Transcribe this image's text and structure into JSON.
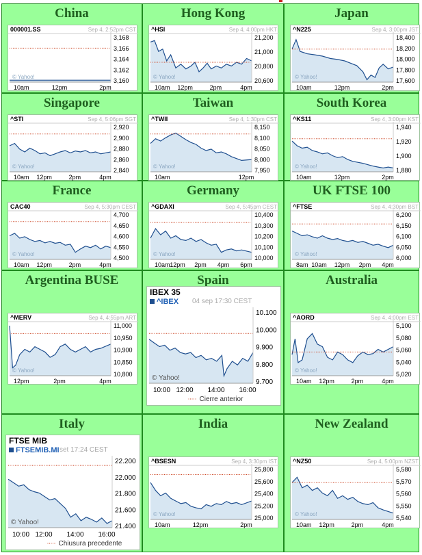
{
  "markets": [
    {
      "title": "China",
      "symbol": "000001.SS",
      "date": "Sep 4, 2:52pm CST",
      "y_labels": [
        "3,168",
        "3,166",
        "3,164",
        "3,162",
        "3,160"
      ],
      "x_labels": [
        "10am",
        "12pm",
        "2pm"
      ],
      "watermark": "© Yahoo!"
    },
    {
      "title": "Hong Kong",
      "symbol": "^HSI",
      "date": "Sep 4, 4:00pm HKT",
      "y_labels": [
        "21,200",
        "21,000",
        "20,800",
        "20,600"
      ],
      "x_labels": [
        "10am",
        "12pm",
        "2pm",
        "4pm"
      ],
      "watermark": "© Yahoo!"
    },
    {
      "title": "Japan",
      "symbol": "^N225",
      "date": "Sep 4, 3:00pm JST",
      "y_labels": [
        "18,400",
        "18,200",
        "18,000",
        "17,800",
        "17,600"
      ],
      "x_labels": [
        "10am",
        "12pm",
        "2pm"
      ],
      "watermark": "© Yahoo!"
    },
    {
      "title": "Singapore",
      "symbol": "^STI",
      "date": "Sep 4, 5:06pm SGT",
      "y_labels": [
        "2,920",
        "2,900",
        "2,880",
        "2,860",
        "2,840"
      ],
      "x_labels": [
        "10am",
        "12pm",
        "2pm",
        "4pm"
      ],
      "watermark": "© Yahoo!"
    },
    {
      "title": "Taiwan",
      "symbol": "^TWII",
      "date": "Sep 4, 1:30pm CST",
      "y_labels": [
        "8,150",
        "8,100",
        "8,050",
        "8,000",
        "7,950"
      ],
      "x_labels": [
        "10am",
        "12pm"
      ],
      "watermark": "© Yahoo!"
    },
    {
      "title": "South Korea",
      "symbol": "^KS11",
      "date": "Sep 4, 3:00pm KST",
      "y_labels": [
        "1,940",
        "1,920",
        "1,900",
        "1,880"
      ],
      "x_labels": [
        "10am",
        "12pm",
        "2pm"
      ],
      "watermark": "© Yahoo!"
    },
    {
      "title": "France",
      "symbol": "CAC40",
      "date": "Sep 4, 5:30pm CEST",
      "y_labels": [
        "4,700",
        "4,650",
        "4,600",
        "4,550",
        "4,500"
      ],
      "x_labels": [
        "10am",
        "12pm",
        "2pm",
        "4pm"
      ],
      "watermark": "© Yahoo!"
    },
    {
      "title": "Germany",
      "symbol": "^GDAXI",
      "date": "Sep 4, 5:45pm CEST",
      "y_labels": [
        "10,400",
        "10,300",
        "10,200",
        "10,100",
        "10,000"
      ],
      "x_labels": [
        "10am",
        "12pm",
        "2pm",
        "4pm",
        "6pm"
      ],
      "watermark": "© Yahoo!"
    },
    {
      "title": "UK FTSE 100",
      "symbol": "^FTSE",
      "date": "Sep 4, 4:30pm BST",
      "y_labels": [
        "6,200",
        "6,150",
        "6,100",
        "6,050",
        "6,000"
      ],
      "x_labels": [
        "8am",
        "10am",
        "12pm",
        "2pm",
        "4pm"
      ],
      "watermark": "© Yahoo!"
    },
    {
      "title": "Argentina BUSE",
      "symbol": "^MERV",
      "date": "Sep 4, 4:55pm ART",
      "y_labels": [
        "11,000",
        "10,950",
        "10,900",
        "10,850",
        "10,800"
      ],
      "x_labels": [
        "12pm",
        "2pm",
        "4pm"
      ],
      "watermark": "© Yahoo!"
    },
    {
      "title": "Spain",
      "index_name": "IBEX 35",
      "symbol": "^IBEX",
      "date": "04 sep 17:30 CEST",
      "y_labels": [
        "10.100",
        "10.000",
        "9.900",
        "9.800",
        "9.700"
      ],
      "x_labels": [
        "10:00",
        "12:00",
        "14:00",
        "16:00"
      ],
      "watermark": "© Yahoo!",
      "legend": "Cierre anterior"
    },
    {
      "title": "Australia",
      "symbol": "^AORD",
      "date": "Sep 4, 4:00pm EST",
      "y_labels": [
        "5,100",
        "5,080",
        "5,060",
        "5,040",
        "5,020"
      ],
      "x_labels": [
        "10am",
        "12pm",
        "2pm",
        "4pm"
      ],
      "watermark": "© Yahoo!"
    },
    {
      "title": "Italy",
      "index_name": "FTSE MIB",
      "symbol": "FTSEMIB.MI",
      "date": "set 17:24 CEST",
      "y_labels": [
        "22.200",
        "22.000",
        "21.800",
        "21.600",
        "21.400"
      ],
      "x_labels": [
        "10:00",
        "12:00",
        "14:00",
        "16:00"
      ],
      "watermark": "© Yahoo!",
      "legend": "Chiusura precedente"
    },
    {
      "title": "India",
      "symbol": "^BSESN",
      "date": "Sep 4, 3:30pm IST",
      "y_labels": [
        "25,800",
        "25,600",
        "25,400",
        "25,200",
        "25,000"
      ],
      "x_labels": [
        "10am",
        "12pm",
        "2pm"
      ],
      "watermark": "© Yahoo!"
    },
    {
      "title": "New Zealand",
      "symbol": "^NZ50",
      "date": "Sep 4, 5:00pm NZST",
      "y_labels": [
        "5,580",
        "5,570",
        "5,560",
        "5,550",
        "5,540"
      ],
      "x_labels": [
        "10am",
        "12pm",
        "2pm",
        "4pm"
      ],
      "watermark": "© Yahoo!"
    }
  ],
  "colors": {
    "grid": "#1e8a1e",
    "cell": "#99ff99",
    "title": "#1f5f1f",
    "line": "#1f4f8f",
    "fill": "#d7e6f2",
    "prev_close": "#cc4422",
    "date": "#b0b0b0"
  }
}
